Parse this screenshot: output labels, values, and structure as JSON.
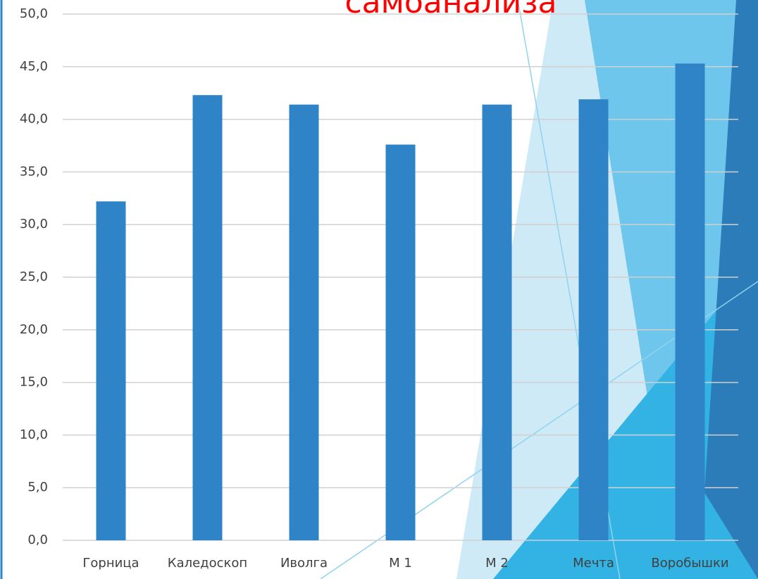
{
  "chart_data": {
    "type": "bar",
    "title": "самоанализа",
    "categories": [
      "Горница",
      "Каледоскоп",
      "Иволга",
      "М 1",
      "М 2",
      "Мечта",
      "Воробышки"
    ],
    "values": [
      32.2,
      42.3,
      41.4,
      37.6,
      41.4,
      41.9,
      45.3
    ],
    "color": "#2e84c6",
    "ylim": [
      0,
      50
    ],
    "yticks": [
      {
        "value": 0,
        "label": "0,0"
      },
      {
        "value": 5,
        "label": "5,0"
      },
      {
        "value": 10,
        "label": "10,0"
      },
      {
        "value": 15,
        "label": "15,0"
      },
      {
        "value": 20,
        "label": "20,0"
      },
      {
        "value": 25,
        "label": "25,0"
      },
      {
        "value": 30,
        "label": "30,0"
      },
      {
        "value": 35,
        "label": "35,0"
      },
      {
        "value": 40,
        "label": "40,0"
      },
      {
        "value": 45,
        "label": "45,0"
      },
      {
        "value": 50,
        "label": "50,0"
      }
    ],
    "grid": true
  }
}
